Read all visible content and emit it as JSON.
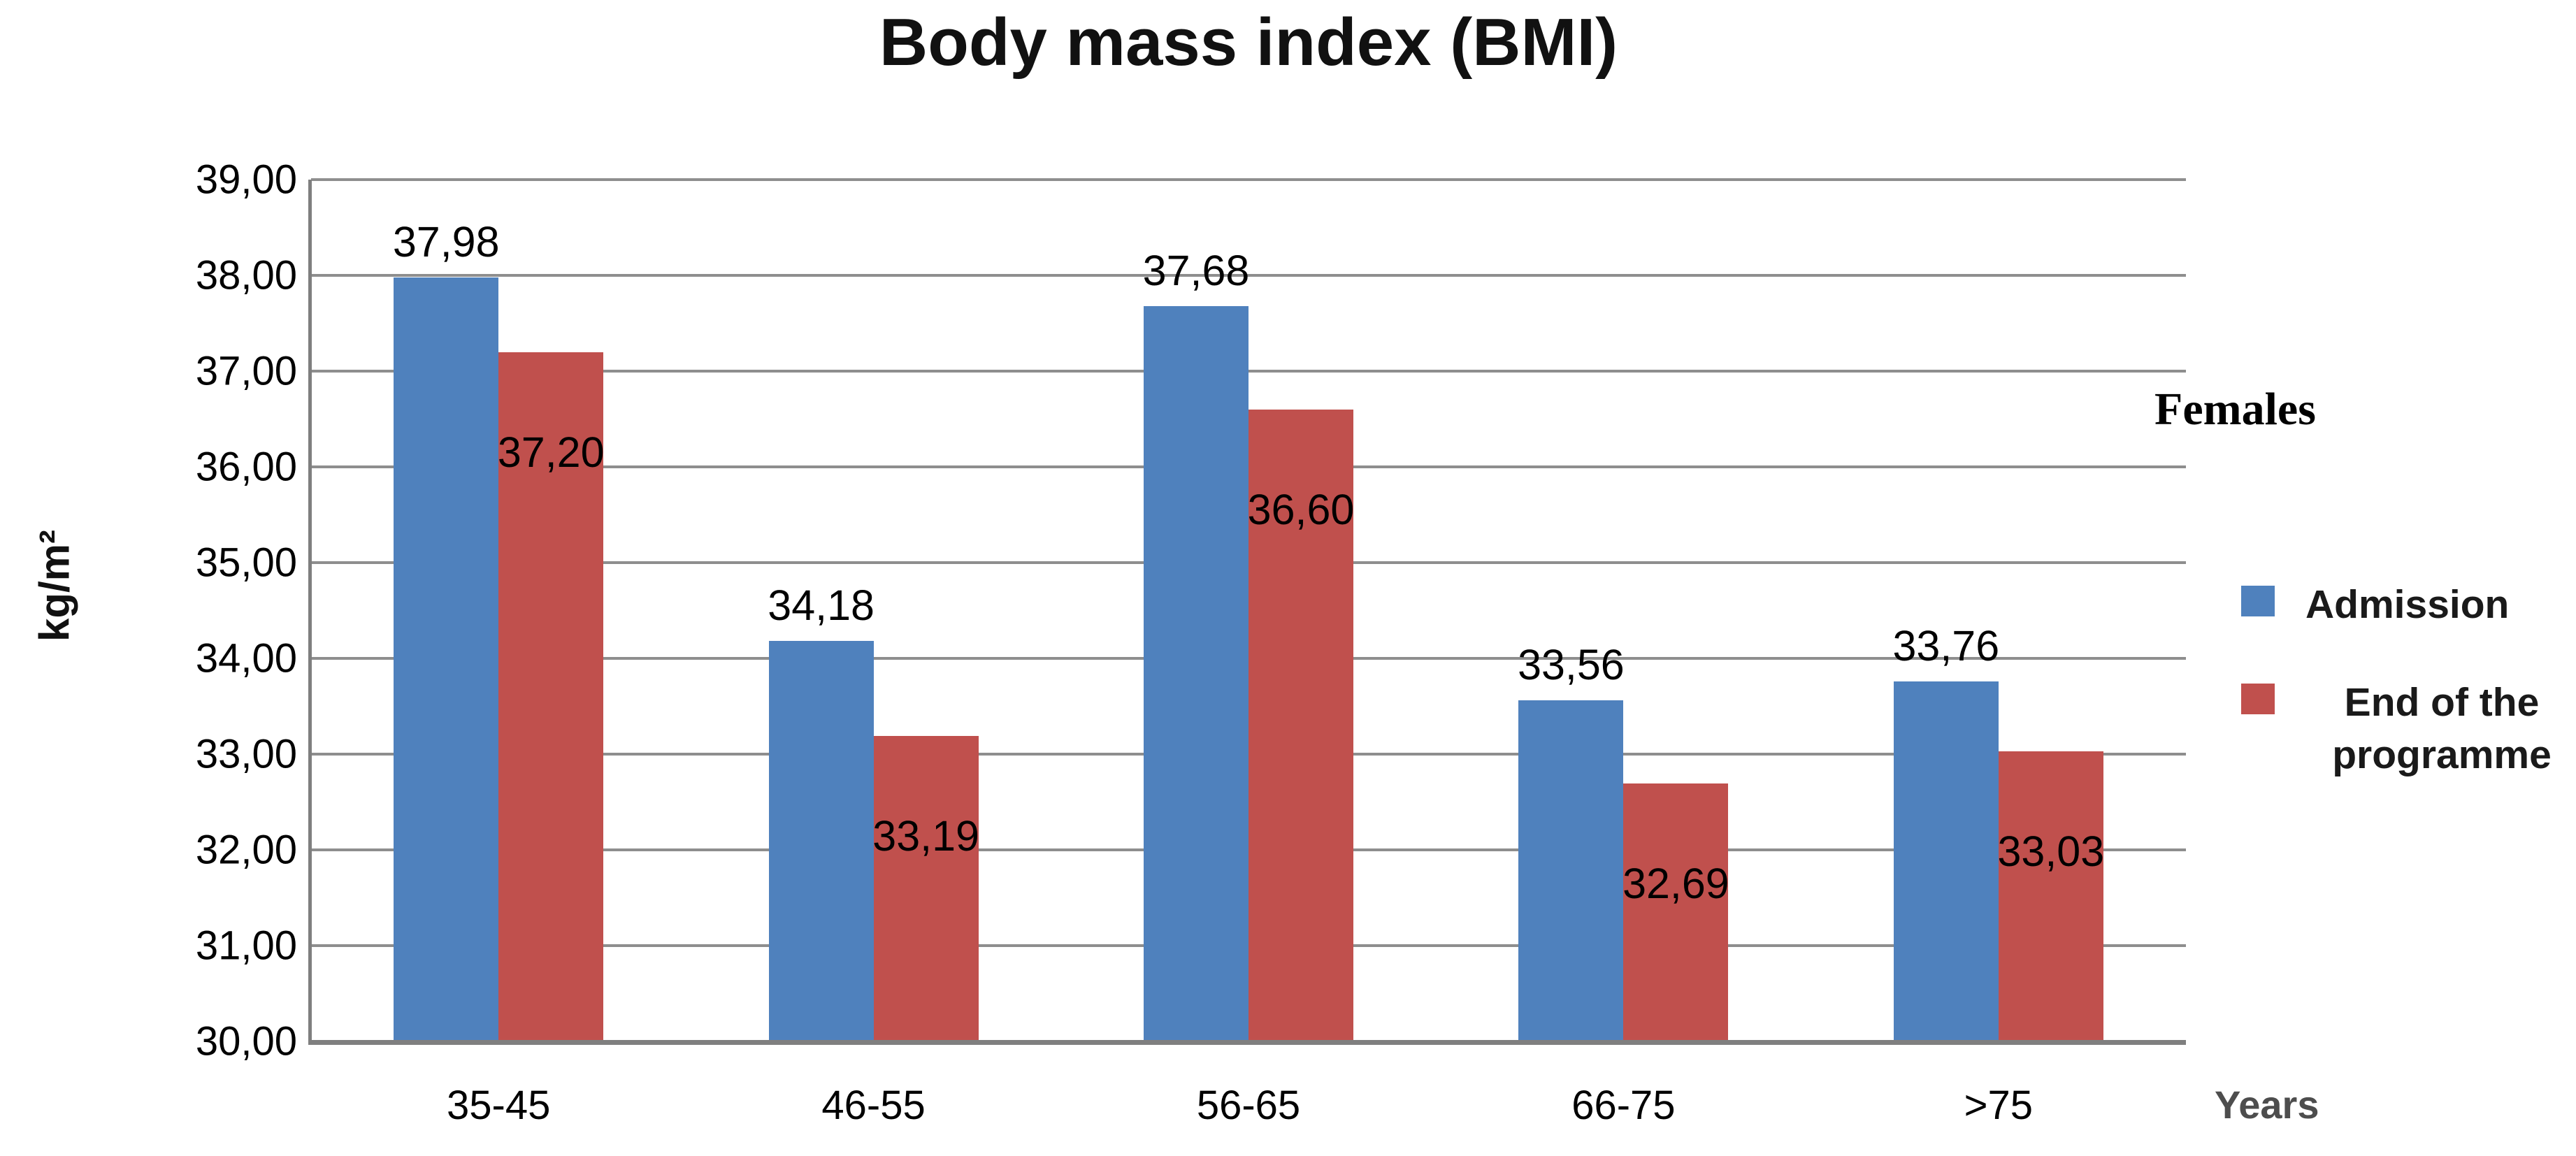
{
  "title": "Body mass index (BMI)",
  "y_axis": {
    "title": "kg/m²",
    "tick_labels_top_to_bottom": [
      "39,00",
      "38,00",
      "37,00",
      "36,00",
      "35,00",
      "34,00",
      "33,00",
      "32,00",
      "31,00",
      "30,00"
    ]
  },
  "x_axis": {
    "title": "Years",
    "categories": [
      "35-45",
      "46-55",
      "56-65",
      "66-75",
      ">75"
    ]
  },
  "annotation": {
    "text": "Females"
  },
  "legend": {
    "items": [
      {
        "label": "Admission",
        "color": "#4F81BD"
      },
      {
        "label": "End of the programme",
        "color": "#C0504D"
      }
    ]
  },
  "colors": {
    "admission_blue": "#4F81BD",
    "end_programme_red": "#C0504D",
    "gridline_gray": "#8e8e8e",
    "axis_gray": "#7f7f7f"
  },
  "chart_data": {
    "type": "bar",
    "title": "Body mass index (BMI)",
    "xlabel": "Years",
    "ylabel": "kg/m²",
    "categories": [
      "35-45",
      "46-55",
      "56-65",
      "66-75",
      ">75"
    ],
    "series": [
      {
        "name": "Admission",
        "color": "#4F81BD",
        "values": [
          37.98,
          34.18,
          37.68,
          33.56,
          33.76
        ],
        "value_labels": [
          "37,98",
          "34,18",
          "37,68",
          "33,56",
          "33,76"
        ],
        "label_position": "above-bar"
      },
      {
        "name": "End of the programme",
        "color": "#C0504D",
        "values": [
          37.2,
          33.19,
          36.6,
          32.69,
          33.03
        ],
        "value_labels": [
          "37,20",
          "33,19",
          "36,60",
          "32,69",
          "33,03"
        ],
        "label_position": "inside-bar"
      }
    ],
    "ylim": [
      30,
      39
    ],
    "ytick_step": 1.0,
    "decimal_separator": "comma",
    "grid": true,
    "gridline_interval": 1.0,
    "legend_position": "right",
    "annotations": [
      {
        "text": "Females",
        "position": "right-of-plot-upper"
      }
    ]
  }
}
